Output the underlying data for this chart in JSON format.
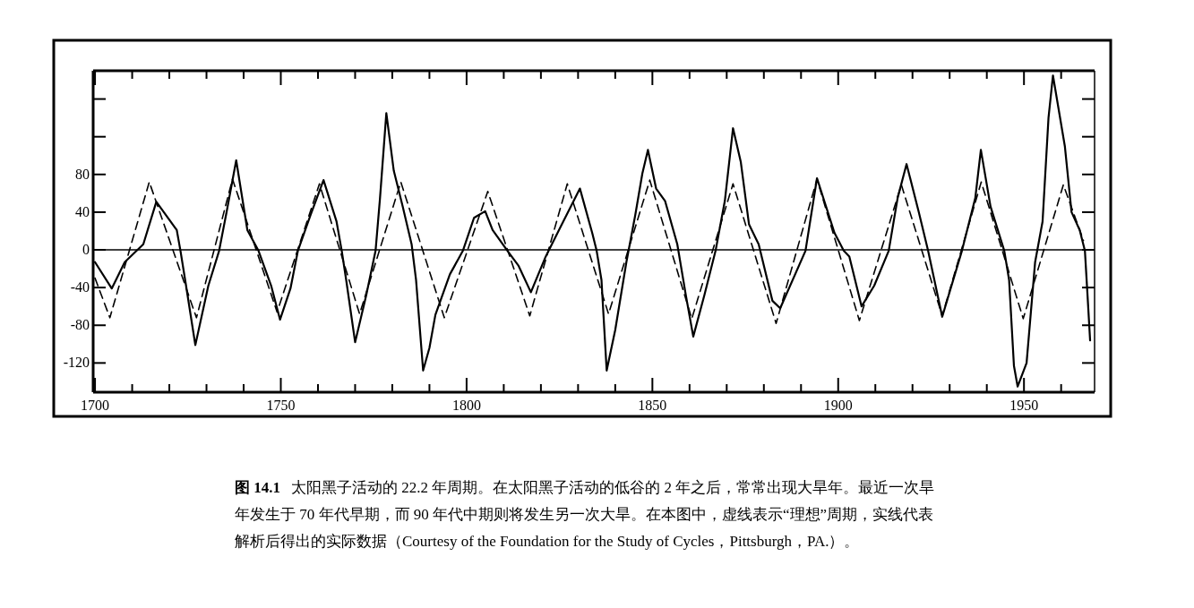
{
  "chart_data": {
    "type": "line",
    "xlim": [
      1699.5,
      1969
    ],
    "ylim": [
      -151,
      190
    ],
    "xticks": [
      1700,
      {
        "value": 1710,
        "label": null
      },
      {
        "value": 1720,
        "label": null
      },
      {
        "value": 1730,
        "label": null
      },
      {
        "value": 1740,
        "label": null
      },
      1750,
      {
        "value": 1760,
        "label": null
      },
      {
        "value": 1770,
        "label": null
      },
      {
        "value": 1780,
        "label": null
      },
      {
        "value": 1790,
        "label": null
      },
      1800,
      {
        "value": 1810,
        "label": null
      },
      {
        "value": 1820,
        "label": null
      },
      {
        "value": 1830,
        "label": null
      },
      {
        "value": 1840,
        "label": null
      },
      1850,
      {
        "value": 1860,
        "label": null
      },
      {
        "value": 1870,
        "label": null
      },
      {
        "value": 1880,
        "label": null
      },
      {
        "value": 1890,
        "label": null
      },
      1900,
      {
        "value": 1910,
        "label": null
      },
      {
        "value": 1920,
        "label": null
      },
      {
        "value": 1930,
        "label": null
      },
      {
        "value": 1940,
        "label": null
      },
      1950,
      {
        "value": 1960,
        "label": null
      }
    ],
    "yticks": [
      -120,
      -80,
      -40,
      0,
      40,
      80,
      {
        "value": 120,
        "label": null
      },
      {
        "value": 160,
        "label": null
      }
    ],
    "ref_lines": [
      {
        "axis": "y",
        "value": 0,
        "color": "#000000"
      }
    ],
    "series": [
      {
        "color": "#000000",
        "line_style": "solid",
        "x": [
          1700,
          1704.5,
          1708,
          1713,
          1716.5,
          1722,
          1723,
          1724.5,
          1727,
          1730.5,
          1733.4,
          1735.4,
          1738,
          1741,
          1744,
          1747.4,
          1749.8,
          1752.6,
          1754.6,
          1758,
          1761.5,
          1765,
          1766.4,
          1767.6,
          1770,
          1773,
          1775.5,
          1776.7,
          1778.4,
          1780.4,
          1782.8,
          1785.2,
          1786.4,
          1788.3,
          1790,
          1791.6,
          1795.5,
          1799,
          1802,
          1805,
          1807,
          1811,
          1814,
          1817.3,
          1821.3,
          1826,
          1830.5,
          1833.8,
          1835,
          1836.3,
          1837.7,
          1840,
          1843,
          1845.4,
          1847.3,
          1848.8,
          1851,
          1853.4,
          1856.7,
          1859,
          1861,
          1864,
          1867,
          1869.5,
          1871.7,
          1873.8,
          1876,
          1878.6,
          1882.3,
          1884.4,
          1891.2,
          1894.3,
          1899,
          1901.5,
          1903,
          1906.3,
          1909.7,
          1913.6,
          1916,
          1918.4,
          1921.7,
          1924.2,
          1928,
          1933.3,
          1936.9,
          1938.4,
          1941,
          1944.7,
          1946,
          1947.3,
          1948.3,
          1950.7,
          1953,
          1955,
          1956.6,
          1957.8,
          1961,
          1962.8,
          1965,
          1966.4,
          1967.1,
          1967.8
        ],
        "values": [
          -13,
          -41,
          -13,
          6,
          51,
          21,
          -1,
          -38,
          -101,
          -38,
          -1,
          40,
          95,
          21,
          -1,
          -38,
          -74,
          -41,
          -1,
          37,
          74,
          30,
          -1,
          -32,
          -98,
          -48,
          -1,
          55,
          145,
          84,
          46,
          6,
          -32,
          -128,
          -104,
          -69,
          -26,
          -1,
          34,
          41,
          21,
          -1,
          -17,
          -45,
          -7,
          30,
          65,
          18,
          -1,
          -32,
          -128,
          -85,
          -13,
          37,
          81,
          106,
          65,
          52,
          6,
          -48,
          -92,
          -48,
          -1,
          52,
          129,
          93,
          27,
          6,
          -54,
          -62,
          -1,
          76,
          18,
          -1,
          -7,
          -60,
          -38,
          -1,
          55,
          91,
          40,
          -1,
          -71,
          -1,
          55,
          106,
          46,
          -1,
          -32,
          -123,
          -145,
          -120,
          -13,
          30,
          140,
          185,
          110,
          40,
          21,
          -1,
          -48,
          -96
        ]
      },
      {
        "color": "#000000",
        "line_style": "dashed",
        "x": [
          1700,
          1704,
          1714.6,
          1727.3,
          1737,
          1749,
          1760.4,
          1771.2,
          1782.3,
          1794,
          1805.7,
          1817,
          1827.1,
          1838.2,
          1849.3,
          1860.6,
          1871.7,
          1883.3,
          1894.3,
          1905.7,
          1917,
          1928,
          1938.5,
          1949.8,
          1960.6,
          1966
        ],
        "values": [
          -30,
          -72,
          72,
          -72,
          75,
          -66,
          70,
          -68,
          72,
          -72,
          62,
          -70,
          70,
          -68,
          74,
          -73,
          70,
          -78,
          75,
          -75,
          69,
          -70,
          72,
          -73,
          69,
          10
        ]
      }
    ],
    "annotations": [
      "图 14.1",
      "太阳黑子活动的 22.2 年周期。在太阳黑子活动的低谷的 2 年之后，常常出现大旱年。最近一次旱年发生于 70 年代早期，而 90 年代中期则将发生另一次大旱。在本图中，虚线表示“理想”周期，实线代表解析后得出的实际数据（Courtesy of the Foundation for the Study of Cycles，Pittsburgh，PA.）。"
    ]
  }
}
